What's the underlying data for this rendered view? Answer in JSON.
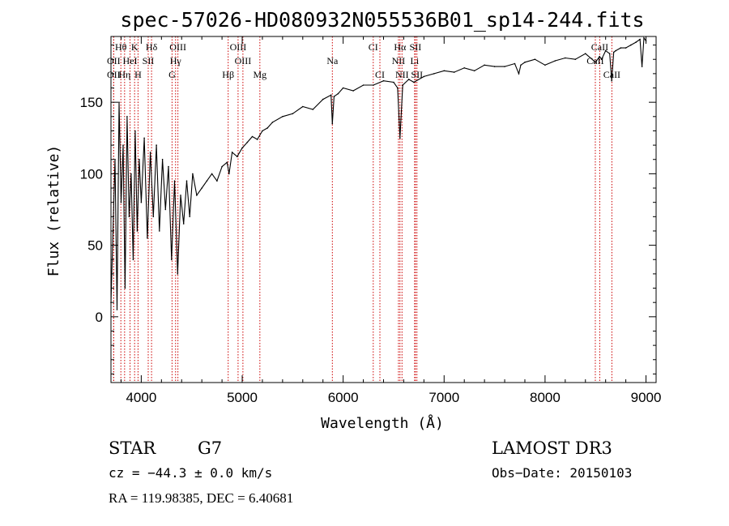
{
  "chart_data": {
    "type": "line",
    "title": "spec-57026-HD080932N055536B01_sp14-244.fits",
    "xlabel": "Wavelength (Å)",
    "ylabel": "Flux (relative)",
    "xlim": [
      3700,
      9100
    ],
    "ylim": [
      -46,
      196
    ],
    "xticks": [
      4000,
      5000,
      6000,
      7000,
      8000,
      9000
    ],
    "yticks": [
      0,
      50,
      100,
      150
    ],
    "series": [
      {
        "name": "flux",
        "x": [
          3700,
          3720,
          3740,
          3760,
          3780,
          3800,
          3820,
          3840,
          3860,
          3880,
          3900,
          3920,
          3940,
          3960,
          3980,
          4000,
          4030,
          4060,
          4090,
          4120,
          4150,
          4180,
          4210,
          4240,
          4270,
          4300,
          4330,
          4360,
          4390,
          4420,
          4450,
          4480,
          4510,
          4550,
          4600,
          4650,
          4700,
          4750,
          4800,
          4850,
          4870,
          4900,
          4950,
          5000,
          5050,
          5100,
          5150,
          5200,
          5250,
          5300,
          5400,
          5500,
          5600,
          5700,
          5800,
          5880,
          5893,
          5910,
          5950,
          6000,
          6100,
          6200,
          6300,
          6400,
          6500,
          6540,
          6563,
          6590,
          6650,
          6700,
          6800,
          6900,
          7000,
          7100,
          7200,
          7300,
          7400,
          7500,
          7600,
          7700,
          7740,
          7760,
          7800,
          7900,
          8000,
          8100,
          8200,
          8300,
          8400,
          8500,
          8540,
          8560,
          8600,
          8640,
          8660,
          8680,
          8700,
          8750,
          8800,
          8850,
          8900,
          8940,
          8960,
          8980,
          9000
        ],
        "y": [
          10,
          60,
          110,
          5,
          150,
          80,
          120,
          20,
          140,
          70,
          100,
          40,
          130,
          60,
          110,
          80,
          125,
          55,
          115,
          70,
          120,
          60,
          110,
          75,
          105,
          40,
          95,
          30,
          85,
          65,
          95,
          70,
          100,
          85,
          90,
          95,
          100,
          95,
          105,
          108,
          100,
          115,
          112,
          118,
          122,
          126,
          124,
          130,
          132,
          136,
          140,
          142,
          147,
          145,
          152,
          155,
          135,
          154,
          156,
          160,
          158,
          162,
          162,
          165,
          164,
          160,
          125,
          162,
          166,
          164,
          168,
          170,
          172,
          171,
          174,
          172,
          176,
          175,
          175,
          177,
          170,
          176,
          178,
          180,
          176,
          179,
          181,
          180,
          184,
          178,
          182,
          180,
          186,
          184,
          165,
          185,
          186,
          188,
          188,
          190,
          192,
          194,
          175,
          195,
          193
        ]
      }
    ],
    "line_markers": [
      {
        "label": "Hθ",
        "x": 3798,
        "row": 0
      },
      {
        "label": "K",
        "x": 3934,
        "row": 0
      },
      {
        "label": "Hδ",
        "x": 4102,
        "row": 0
      },
      {
        "label": "OIII",
        "x": 4363,
        "row": 0
      },
      {
        "label": "OIII",
        "x": 4959,
        "row": 0
      },
      {
        "label": "CI",
        "x": 6298,
        "row": 0
      },
      {
        "label": "Hα",
        "x": 6563,
        "row": 0
      },
      {
        "label": "SII",
        "x": 6716,
        "row": 0
      },
      {
        "label": "CaII",
        "x": 8542,
        "row": 0
      },
      {
        "label": "OII",
        "x": 3727,
        "row": 1
      },
      {
        "label": "HeI",
        "x": 3889,
        "row": 1
      },
      {
        "label": "SII",
        "x": 4069,
        "row": 1
      },
      {
        "label": "Hγ",
        "x": 4340,
        "row": 1
      },
      {
        "label": "OIII",
        "x": 5007,
        "row": 1
      },
      {
        "label": "Na",
        "x": 5893,
        "row": 1
      },
      {
        "label": "NII",
        "x": 6548,
        "row": 1
      },
      {
        "label": "Li",
        "x": 6708,
        "row": 1
      },
      {
        "label": "CaII",
        "x": 8498,
        "row": 1
      },
      {
        "label": "OII",
        "x": 3727,
        "row": 2
      },
      {
        "label": "Hη",
        "x": 3835,
        "row": 2
      },
      {
        "label": "H",
        "x": 3968,
        "row": 2
      },
      {
        "label": "G",
        "x": 4305,
        "row": 2
      },
      {
        "label": "Hβ",
        "x": 4861,
        "row": 2
      },
      {
        "label": "Mg",
        "x": 5175,
        "row": 2
      },
      {
        "label": "CI",
        "x": 6364,
        "row": 2
      },
      {
        "label": "NII",
        "x": 6583,
        "row": 2
      },
      {
        "label": "SII",
        "x": 6731,
        "row": 2
      },
      {
        "label": "CaII",
        "x": 8662,
        "row": 2
      }
    ]
  },
  "info": {
    "class_label": "STAR",
    "subclass_label": "G7",
    "survey": "LAMOST DR3",
    "cz": "cz = −44.3 ± 0.0 km/s",
    "obs_date": "Obs−Date: 20150103",
    "coords": "RA = 119.98385, DEC =    6.40681"
  }
}
